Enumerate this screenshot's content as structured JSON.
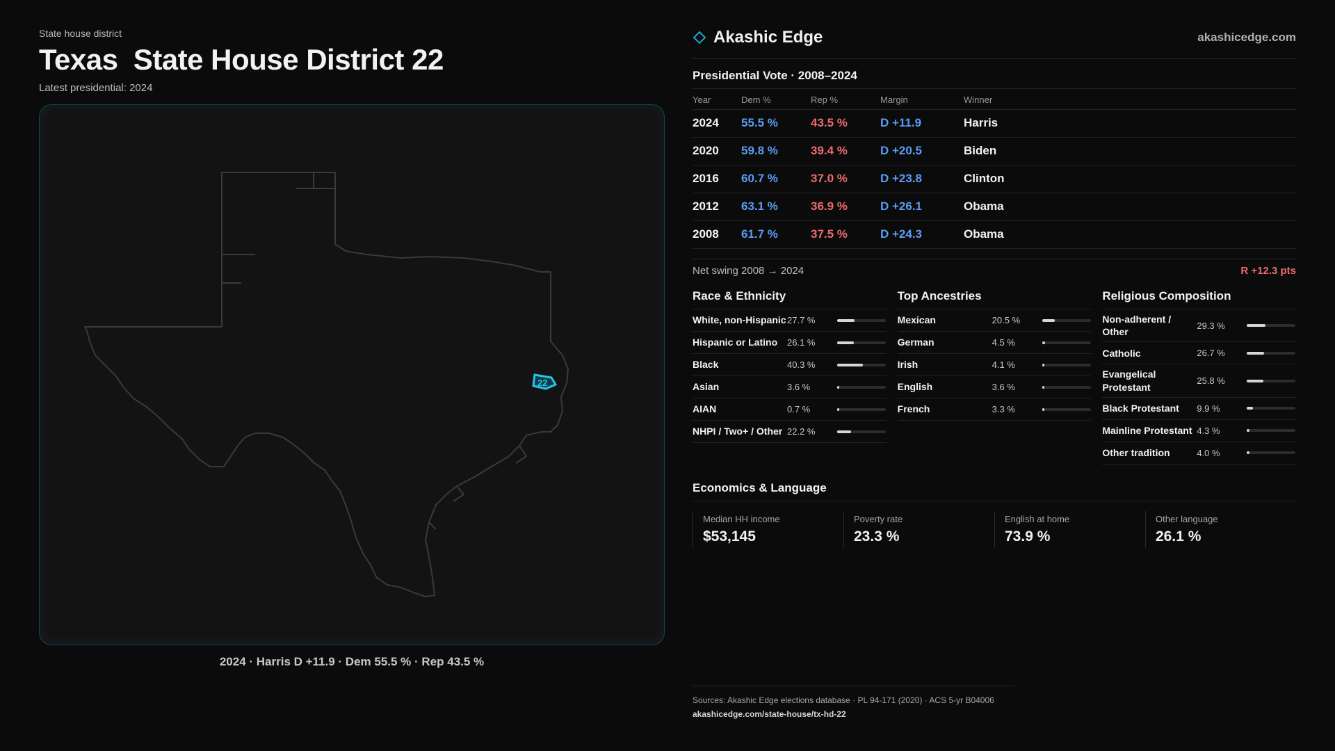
{
  "header": {
    "eyebrow": "State house district",
    "title": "Texas  State House District 22",
    "subtitle": "Latest presidential: 2024"
  },
  "map": {
    "district_label": "22",
    "caption": "2024 · Harris D +11.9 · Dem 55.5 % · Rep 43.5 %",
    "outline_color": "#3a3a3e",
    "district_color": "#22c6e8"
  },
  "brand": {
    "name": "Akashic Edge",
    "url": "akashicedge.com",
    "icon": "diamond-icon"
  },
  "presidential": {
    "title": "Presidential Vote · 2008–2024",
    "columns": [
      "Year",
      "Dem %",
      "Rep %",
      "Margin",
      "Winner"
    ],
    "rows": [
      {
        "year": "2024",
        "dem": "55.5 %",
        "rep": "43.5 %",
        "margin": "D +11.9",
        "winner": "Harris"
      },
      {
        "year": "2020",
        "dem": "59.8 %",
        "rep": "39.4 %",
        "margin": "D +20.5",
        "winner": "Biden"
      },
      {
        "year": "2016",
        "dem": "60.7 %",
        "rep": "37.0 %",
        "margin": "D +23.8",
        "winner": "Clinton"
      },
      {
        "year": "2012",
        "dem": "63.1 %",
        "rep": "36.9 %",
        "margin": "D +26.1",
        "winner": "Obama"
      },
      {
        "year": "2008",
        "dem": "61.7 %",
        "rep": "37.5 %",
        "margin": "D +24.3",
        "winner": "Obama"
      }
    ],
    "swing_label": "Net swing 2008 → 2024",
    "swing_value": "R +12.3 pts"
  },
  "demographics": [
    {
      "title": "Race & Ethnicity",
      "items": [
        {
          "label": "White, non-Hispanic",
          "value": "27.7 %",
          "pct": 27.7
        },
        {
          "label": "Hispanic or Latino",
          "value": "26.1 %",
          "pct": 26.1
        },
        {
          "label": "Black",
          "value": "40.3 %",
          "pct": 40.3
        },
        {
          "label": "Asian",
          "value": "3.6 %",
          "pct": 3.6
        },
        {
          "label": "AIAN",
          "value": "0.7 %",
          "pct": 0.7
        },
        {
          "label": "NHPI / Two+ / Other",
          "value": "22.2 %",
          "pct": 22.2
        }
      ]
    },
    {
      "title": "Top Ancestries",
      "items": [
        {
          "label": "Mexican",
          "value": "20.5 %",
          "pct": 20.5
        },
        {
          "label": "German",
          "value": "4.5 %",
          "pct": 4.5
        },
        {
          "label": "Irish",
          "value": "4.1 %",
          "pct": 4.1
        },
        {
          "label": "English",
          "value": "3.6 %",
          "pct": 3.6
        },
        {
          "label": "French",
          "value": "3.3 %",
          "pct": 3.3
        }
      ]
    },
    {
      "title": "Religious Composition",
      "items": [
        {
          "label": "Non-adherent / Other",
          "value": "29.3 %",
          "pct": 29.3
        },
        {
          "label": "Catholic",
          "value": "26.7 %",
          "pct": 26.7
        },
        {
          "label": "Evangelical Protestant",
          "value": "25.8 %",
          "pct": 25.8
        },
        {
          "label": "Black Protestant",
          "value": "9.9 %",
          "pct": 9.9
        },
        {
          "label": "Mainline Protestant",
          "value": "4.3 %",
          "pct": 4.3
        },
        {
          "label": "Other tradition",
          "value": "4.0 %",
          "pct": 4.0
        }
      ]
    }
  ],
  "economics": {
    "title": "Economics & Language",
    "items": [
      {
        "label": "Median HH income",
        "value": "$53,145"
      },
      {
        "label": "Poverty rate",
        "value": "23.3 %"
      },
      {
        "label": "English at home",
        "value": "73.9 %"
      },
      {
        "label": "Other language",
        "value": "26.1 %"
      }
    ]
  },
  "sources": {
    "text": "Sources: Akashic Edge elections database · PL 94-171 (2020) · ACS 5-yr B04006",
    "url": "akashicedge.com/state-house/tx-hd-22"
  }
}
